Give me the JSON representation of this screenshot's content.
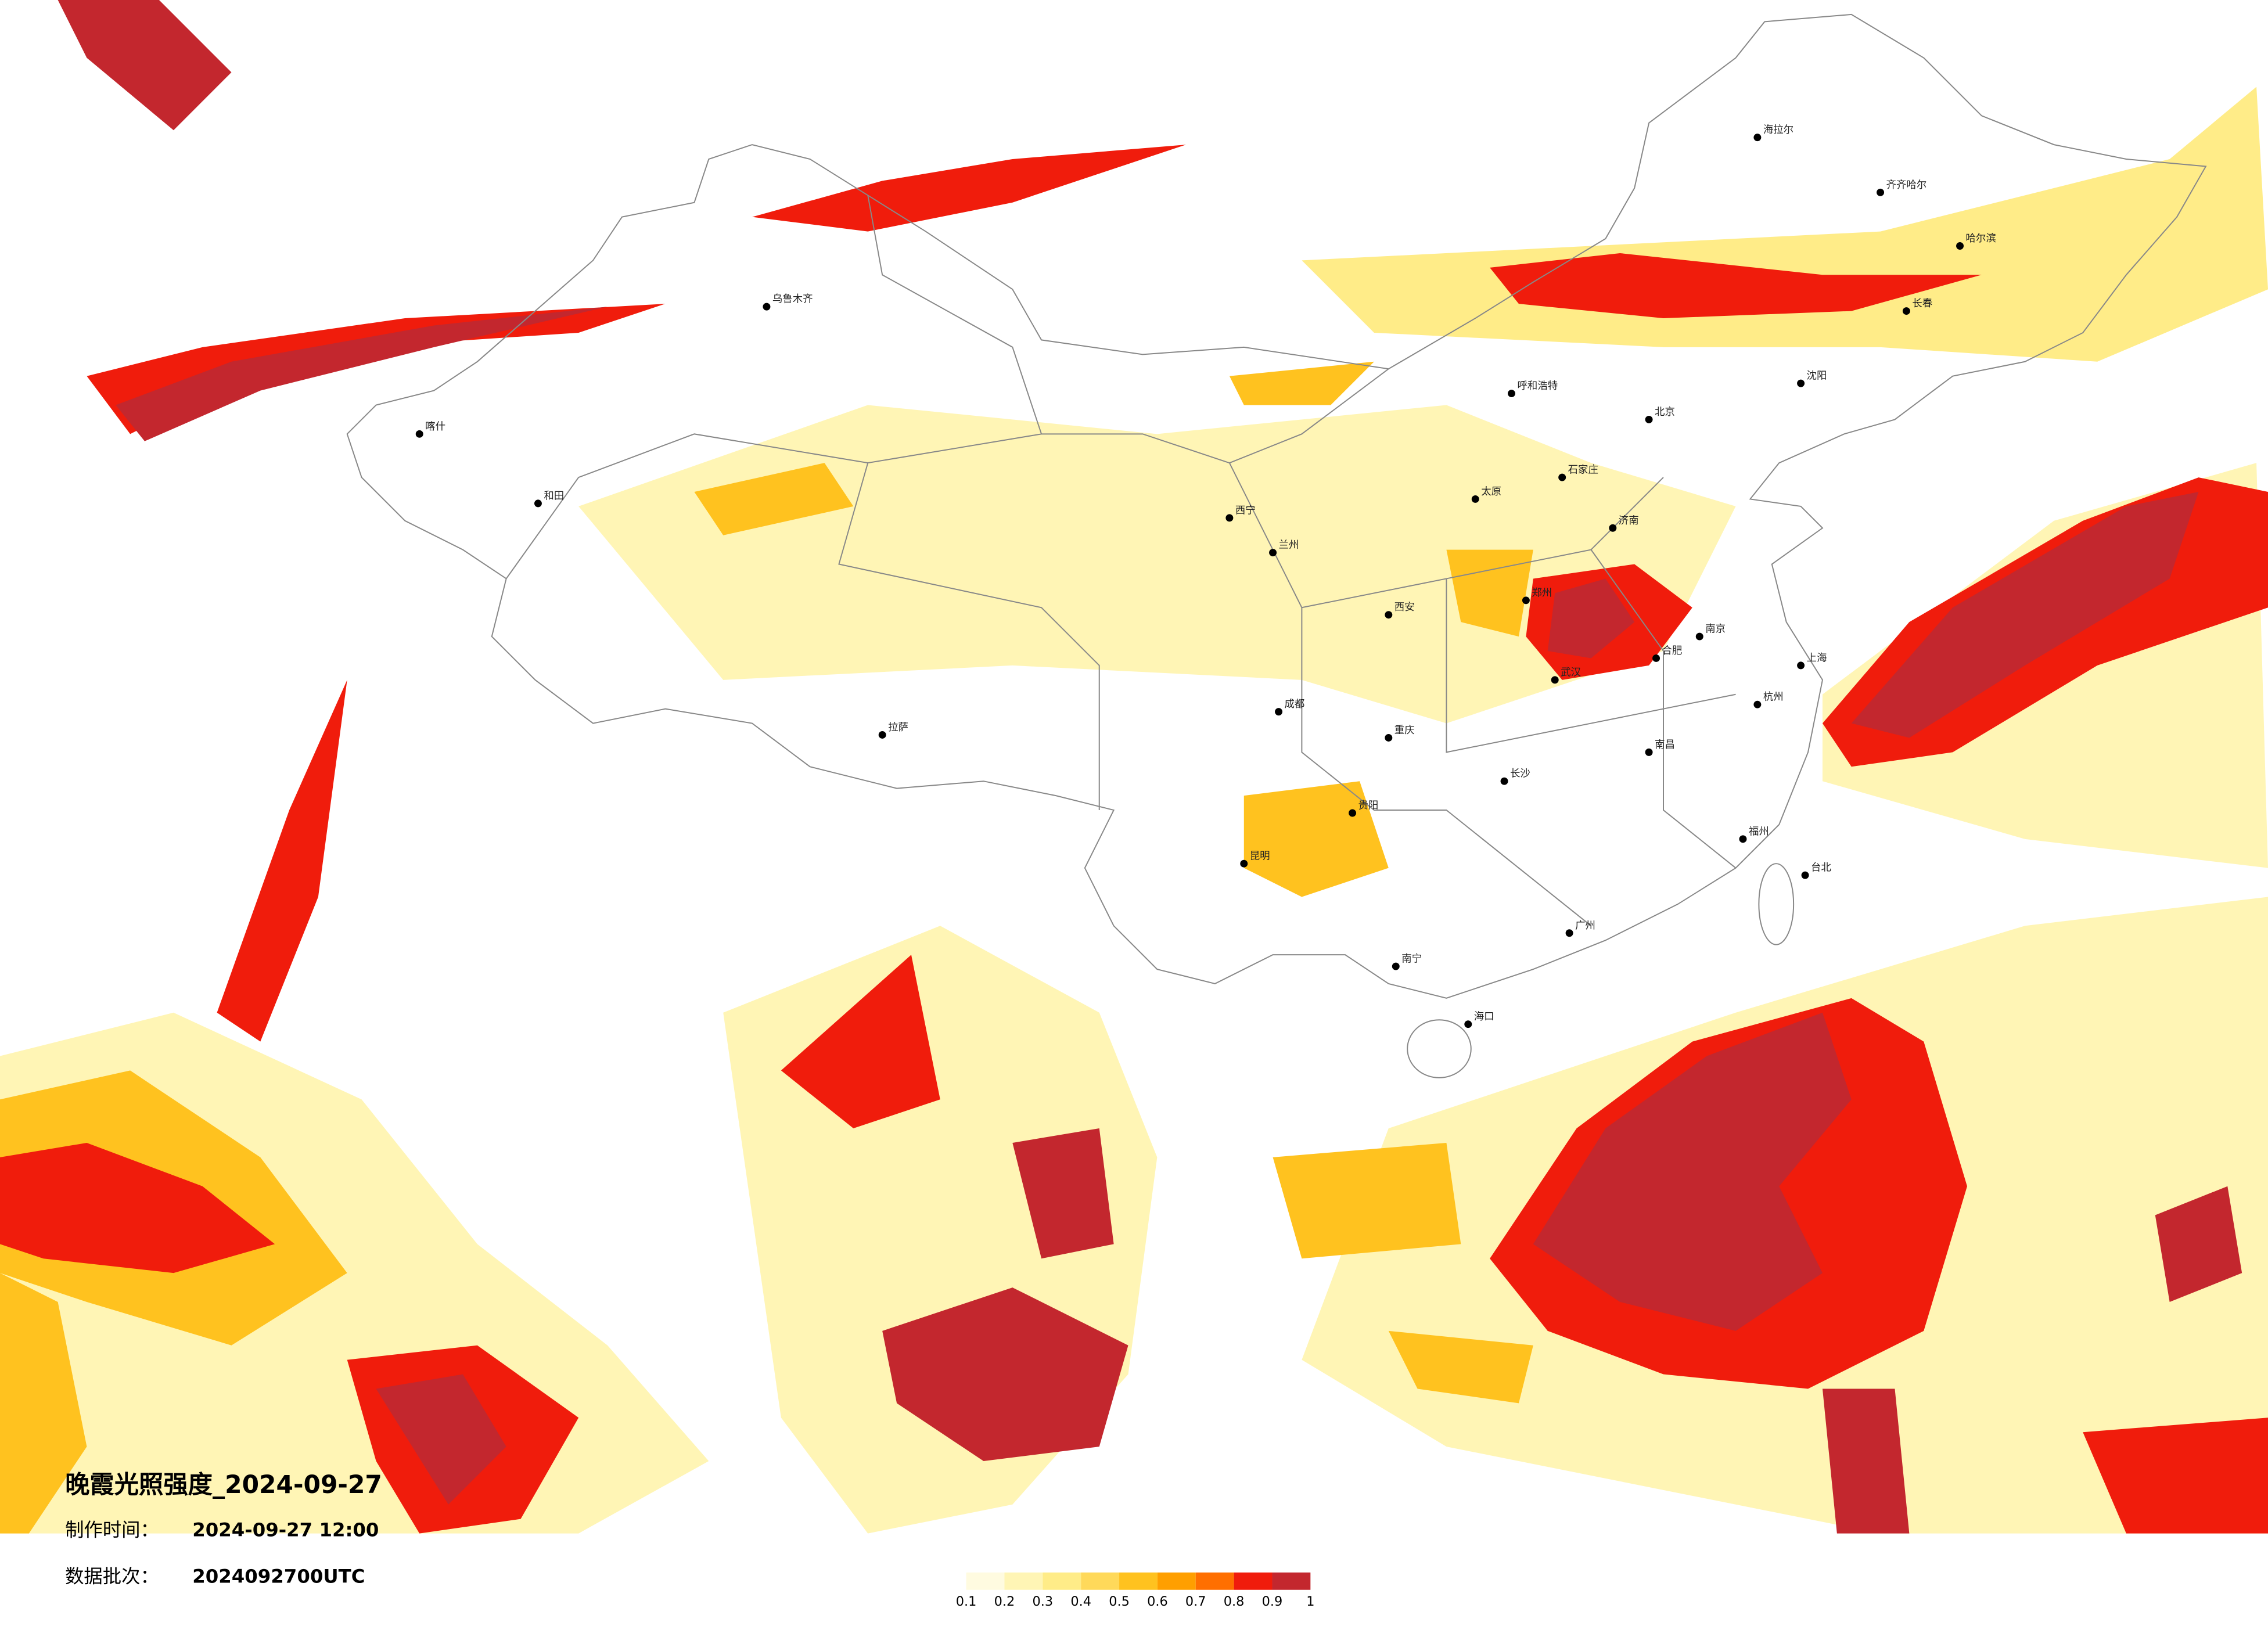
{
  "title": "晚霞光照强度_2024-09-27",
  "info": [
    {
      "label": "制作时间：",
      "value": "2024-09-27 12:00"
    },
    {
      "label": "数据批次：",
      "value": "2024092700UTC"
    }
  ],
  "legend": {
    "colors": [
      "#fffbe0",
      "#fff5b5",
      "#ffec88",
      "#ffd95a",
      "#ffc21f",
      "#ff9f00",
      "#ff6f00",
      "#f01c0c",
      "#c3272e"
    ],
    "ticks": [
      0.1,
      0.2,
      0.3,
      0.4,
      0.5,
      0.6,
      0.7,
      0.8,
      0.9,
      1
    ]
  },
  "cities": [
    "哈尔滨",
    "长春",
    "沈阳",
    "齐齐哈尔",
    "海拉尔",
    "呼和浩特",
    "北京",
    "石家庄",
    "太原",
    "济南",
    "郑州",
    "西安",
    "兰州",
    "西宁",
    "乌鲁木齐",
    "喀什",
    "和田",
    "拉萨",
    "成都",
    "重庆",
    "贵阳",
    "昆明",
    "南宁",
    "广州",
    "长沙",
    "武汉",
    "南昌",
    "合肥",
    "南京",
    "上海",
    "杭州",
    "福州",
    "台北",
    "海口"
  ]
}
